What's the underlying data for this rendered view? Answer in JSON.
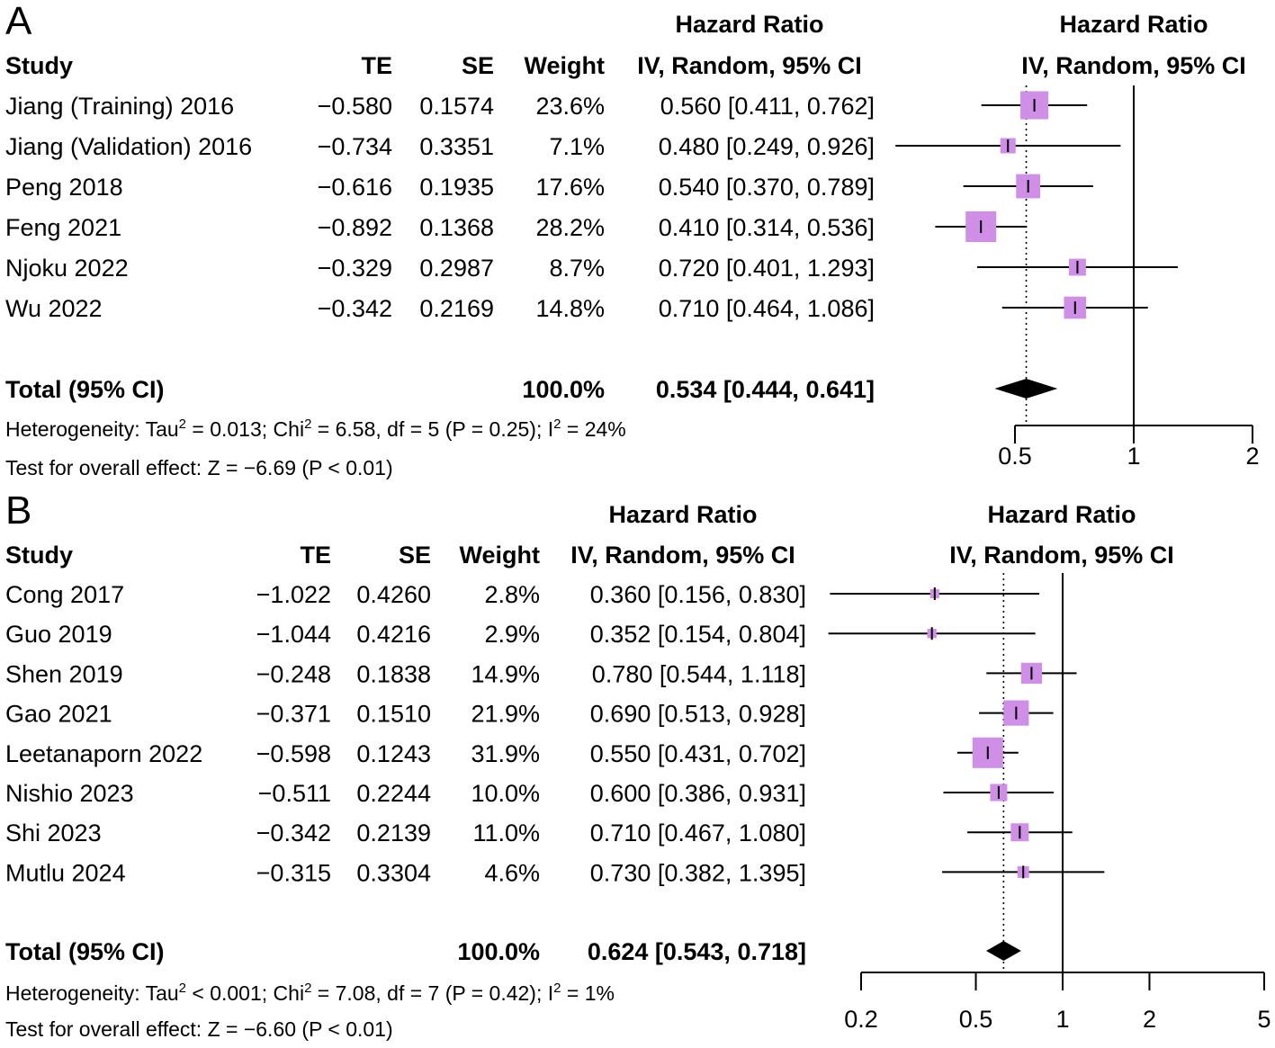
{
  "colors": {
    "box": "#cf8fe6",
    "line": "#000000",
    "diamond": "#000000"
  },
  "chart_data": [
    {
      "type": "forest",
      "panel": "A",
      "headers": {
        "study": "Study",
        "te": "TE",
        "se": "SE",
        "weight": "Weight",
        "hr_group": "Hazard Ratio",
        "hr_method": "IV, Random, 95% CI",
        "plot_group": "Hazard Ratio",
        "plot_method": "IV, Random, 95% CI"
      },
      "studies": [
        {
          "name": "Jiang (Training) 2016",
          "te": "−0.580",
          "se": "0.1574",
          "weight_label": "23.6%",
          "ci_label": "0.560 [0.411, 0.762]",
          "hr": 0.56,
          "lower": 0.411,
          "upper": 0.762,
          "weight": 23.6
        },
        {
          "name": "Jiang (Validation) 2016",
          "te": "−0.734",
          "se": "0.3351",
          "weight_label": "7.1%",
          "ci_label": "0.480 [0.249, 0.926]",
          "hr": 0.48,
          "lower": 0.249,
          "upper": 0.926,
          "weight": 7.1
        },
        {
          "name": "Peng 2018",
          "te": "−0.616",
          "se": "0.1935",
          "weight_label": "17.6%",
          "ci_label": "0.540 [0.370, 0.789]",
          "hr": 0.54,
          "lower": 0.37,
          "upper": 0.789,
          "weight": 17.6
        },
        {
          "name": "Feng 2021",
          "te": "−0.892",
          "se": "0.1368",
          "weight_label": "28.2%",
          "ci_label": "0.410 [0.314, 0.536]",
          "hr": 0.41,
          "lower": 0.314,
          "upper": 0.536,
          "weight": 28.2
        },
        {
          "name": "Njoku 2022",
          "te": "−0.329",
          "se": "0.2987",
          "weight_label": "8.7%",
          "ci_label": "0.720 [0.401, 1.293]",
          "hr": 0.72,
          "lower": 0.401,
          "upper": 1.293,
          "weight": 8.7
        },
        {
          "name": "Wu 2022",
          "te": "−0.342",
          "se": "0.2169",
          "weight_label": "14.8%",
          "ci_label": "0.710 [0.464, 1.086]",
          "hr": 0.71,
          "lower": 0.464,
          "upper": 1.086,
          "weight": 14.8
        }
      ],
      "total": {
        "label": "Total (95% CI)",
        "weight_label": "100.0%",
        "ci_label": "0.534 [0.444, 0.641]",
        "hr": 0.534,
        "lower": 0.444,
        "upper": 0.641
      },
      "heterogeneity": {
        "a": "Heterogeneity: Tau",
        "b": " = 0.013; Chi",
        "c": " = 6.58, df = 5 (P = 0.25); I",
        "d": " = 24%",
        "sup": "2"
      },
      "overall_effect": "Test for overall effect: Z = −6.69 (P < 0.01)",
      "xaxis": {
        "scale": "log",
        "range": [
          0.5,
          2
        ],
        "ticks": [
          0.5,
          1,
          2
        ],
        "tick_labels": [
          "0.5",
          "1",
          "2"
        ],
        "null_value": 1
      }
    },
    {
      "type": "forest",
      "panel": "B",
      "headers": {
        "study": "Study",
        "te": "TE",
        "se": "SE",
        "weight": "Weight",
        "hr_group": "Hazard Ratio",
        "hr_method": "IV, Random, 95% CI",
        "plot_group": "Hazard Ratio",
        "plot_method": "IV, Random, 95% CI"
      },
      "studies": [
        {
          "name": "Cong 2017",
          "te": "−1.022",
          "se": "0.4260",
          "weight_label": "2.8%",
          "ci_label": "0.360 [0.156, 0.830]",
          "hr": 0.36,
          "lower": 0.156,
          "upper": 0.83,
          "weight": 2.8
        },
        {
          "name": "Guo 2019",
          "te": "−1.044",
          "se": "0.4216",
          "weight_label": "2.9%",
          "ci_label": "0.352 [0.154, 0.804]",
          "hr": 0.352,
          "lower": 0.154,
          "upper": 0.804,
          "weight": 2.9
        },
        {
          "name": "Shen 2019",
          "te": "−0.248",
          "se": "0.1838",
          "weight_label": "14.9%",
          "ci_label": "0.780 [0.544, 1.118]",
          "hr": 0.78,
          "lower": 0.544,
          "upper": 1.118,
          "weight": 14.9
        },
        {
          "name": "Gao 2021",
          "te": "−0.371",
          "se": "0.1510",
          "weight_label": "21.9%",
          "ci_label": "0.690 [0.513, 0.928]",
          "hr": 0.69,
          "lower": 0.513,
          "upper": 0.928,
          "weight": 21.9
        },
        {
          "name": "Leetanaporn 2022",
          "te": "−0.598",
          "se": "0.1243",
          "weight_label": "31.9%",
          "ci_label": "0.550 [0.431, 0.702]",
          "hr": 0.55,
          "lower": 0.431,
          "upper": 0.702,
          "weight": 31.9
        },
        {
          "name": "Nishio 2023",
          "te": "−0.511",
          "se": "0.2244",
          "weight_label": "10.0%",
          "ci_label": "0.600 [0.386, 0.931]",
          "hr": 0.6,
          "lower": 0.386,
          "upper": 0.931,
          "weight": 10.0
        },
        {
          "name": "Shi 2023",
          "te": "−0.342",
          "se": "0.2139",
          "weight_label": "11.0%",
          "ci_label": "0.710 [0.467, 1.080]",
          "hr": 0.71,
          "lower": 0.467,
          "upper": 1.08,
          "weight": 11.0
        },
        {
          "name": "Mutlu 2024",
          "te": "−0.315",
          "se": "0.3304",
          "weight_label": "4.6%",
          "ci_label": "0.730 [0.382, 1.395]",
          "hr": 0.73,
          "lower": 0.382,
          "upper": 1.395,
          "weight": 4.6
        }
      ],
      "total": {
        "label": "Total (95% CI)",
        "weight_label": "100.0%",
        "ci_label": "0.624 [0.543, 0.718]",
        "hr": 0.624,
        "lower": 0.543,
        "upper": 0.718
      },
      "heterogeneity": {
        "a": "Heterogeneity: Tau",
        "b": " < 0.001; Chi",
        "c": " = 7.08, df = 7 (P = 0.42); I",
        "d": " = 1%",
        "sup": "2"
      },
      "overall_effect": "Test for overall effect: Z = −6.60 (P < 0.01)",
      "xaxis": {
        "scale": "log",
        "range": [
          0.2,
          5
        ],
        "ticks": [
          0.2,
          0.5,
          1,
          2,
          5
        ],
        "tick_labels": [
          "0.2",
          "0.5",
          "1",
          "2",
          "5"
        ],
        "null_value": 1
      }
    }
  ]
}
